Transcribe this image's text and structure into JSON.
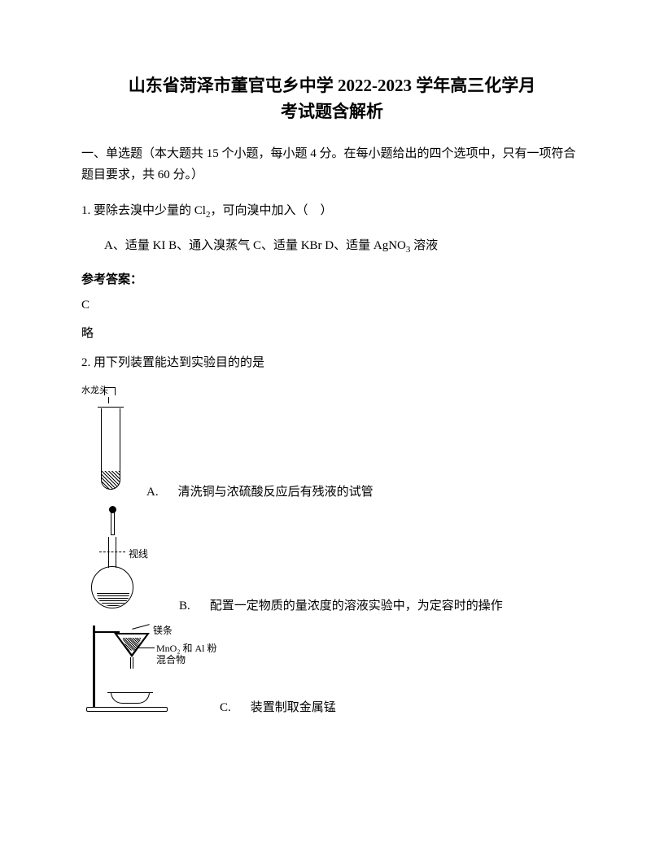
{
  "title_line1": "山东省菏泽市董官屯乡中学 2022-2023 学年高三化学月",
  "title_line2": "考试题含解析",
  "section1_header": "一、单选题（本大题共 15 个小题，每小题 4 分。在每小题给出的四个选项中，只有一项符合题目要求，共 60 分。）",
  "q1": {
    "text": "1. 要除去溴中少量的 Cl",
    "sub": "2",
    "text2": "，可向溴中加入（　）",
    "opt_a_pre": "A、适量 KI",
    "opt_b": " B、通入溴蒸气",
    "opt_c": " C、适量 KBr ",
    "opt_d_pre": " D、适量 AgNO",
    "opt_d_sub": "3",
    "opt_d_post": " 溶液"
  },
  "answer_label": "参考答案：",
  "q1_answer": "C",
  "q1_brief": "略",
  "q2": {
    "text": "2. 用下列装置能达到实验目的的是",
    "optA": {
      "letter": "A.",
      "text": "清洗铜与浓硫酸反应后有残液的试管"
    },
    "optB": {
      "letter": "B.",
      "text": "配置一定物质的量浓度的溶液实验中，为定容时的操作"
    },
    "optC": {
      "letter": "C.",
      "text": "装置制取金属锰"
    },
    "diagramA": {
      "tap_label": "水龙头"
    },
    "diagramB": {
      "mark_label": "视线"
    },
    "diagramC": {
      "mg_label": "镁条",
      "mix_label_l1": "MnO₂ 和 Al 粉",
      "mix_label_l2": "混合物"
    }
  }
}
